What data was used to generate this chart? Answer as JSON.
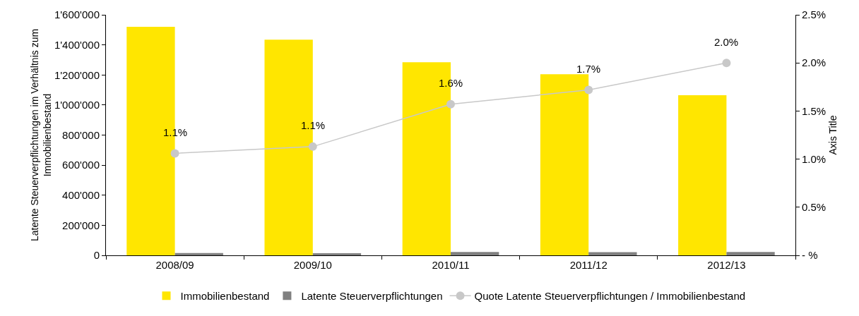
{
  "chart_data": {
    "type": "bar",
    "ylabel": "Latente Steuerverpflichtungen im Verhältnis zum Immobilienbestand",
    "y2label": "Axis Title",
    "categories": [
      "2008/09",
      "2009/10",
      "2010/11",
      "2011/12",
      "2012/13"
    ],
    "series": [
      {
        "name": "Immobilienbestand",
        "color": "#ffe600",
        "values": [
          1520000,
          1435000,
          1285000,
          1205000,
          1065000
        ]
      },
      {
        "name": "Latente Steuerverpflichtungen",
        "color": "#808080",
        "values": [
          15000,
          14000,
          22000,
          21000,
          22000
        ]
      },
      {
        "name": "Quote Latente Steuerverpflichtungen / Immobilienbestand",
        "type": "line",
        "axis": "y2",
        "color": "#c8c8c8",
        "marker": "circle",
        "values": [
          1.06,
          1.13,
          1.57,
          1.72,
          2.0
        ],
        "value_labels": [
          "1.1%",
          "1.1%",
          "1.6%",
          "1.7%",
          "2.0%"
        ]
      }
    ],
    "ylim": [
      0,
      1600000
    ],
    "yticks": [
      0,
      {
        "value": 200000,
        "label": "200'000"
      },
      {
        "value": 400000,
        "label": "400'000"
      },
      {
        "value": 600000,
        "label": "600'000"
      },
      {
        "value": 800000,
        "label": "800'000"
      },
      {
        "value": 1000000,
        "label": "1'000'000"
      },
      {
        "value": 1200000,
        "label": "1'200'000"
      },
      {
        "value": 1400000,
        "label": "1'400'000"
      },
      {
        "value": 1600000,
        "label": "1'600'000"
      }
    ],
    "y2lim": [
      0,
      2.5
    ],
    "y2ticks": [
      {
        "value": 0,
        "label": "- %"
      },
      {
        "value": 0.5,
        "label": "0.5%"
      },
      {
        "value": 1,
        "label": "1.0%"
      },
      {
        "value": 1.5,
        "label": "1.5%"
      },
      {
        "value": 2,
        "label": "2.0%"
      },
      {
        "value": 2.5,
        "label": "2.5%"
      }
    ],
    "grid": false,
    "legend": "bottom"
  }
}
